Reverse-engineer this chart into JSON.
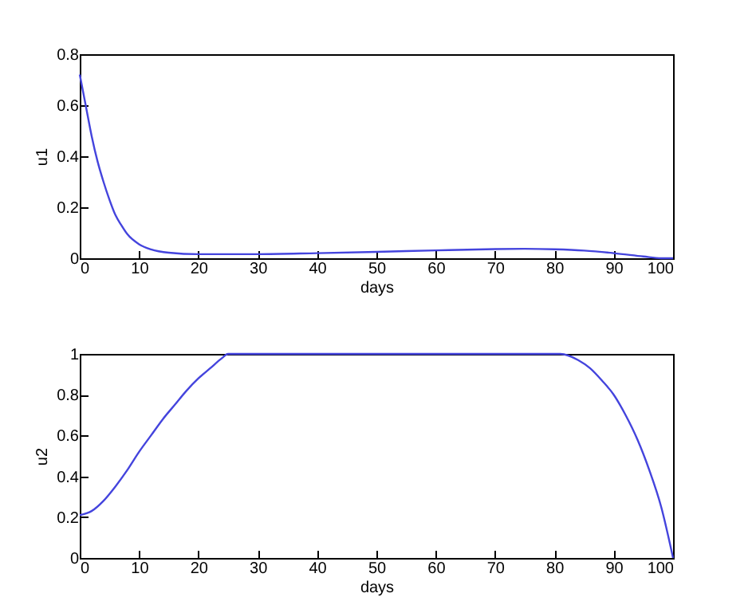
{
  "chart_data": [
    {
      "type": "line",
      "xlabel": "days",
      "ylabel": "u1",
      "xlim": [
        0,
        100
      ],
      "ylim": [
        0,
        0.8
      ],
      "xticks": [
        0,
        10,
        20,
        30,
        40,
        50,
        60,
        70,
        80,
        90,
        100
      ],
      "yticks": [
        0,
        0.2,
        0.4,
        0.6,
        0.8
      ],
      "grid": false,
      "series": [
        {
          "color": "#4444dd",
          "x": [
            0,
            1,
            2,
            3,
            4,
            5,
            6,
            7,
            8,
            10,
            12,
            15,
            20,
            30,
            40,
            50,
            60,
            70,
            75,
            80,
            85,
            90,
            95,
            98,
            100
          ],
          "values": [
            0.72,
            0.6,
            0.48,
            0.38,
            0.3,
            0.23,
            0.17,
            0.13,
            0.095,
            0.055,
            0.035,
            0.022,
            0.016,
            0.016,
            0.02,
            0.025,
            0.031,
            0.036,
            0.037,
            0.035,
            0.03,
            0.02,
            0.007,
            0.0,
            0.0
          ]
        }
      ]
    },
    {
      "type": "line",
      "xlabel": "days",
      "ylabel": "u2",
      "xlim": [
        0,
        100
      ],
      "ylim": [
        0,
        1
      ],
      "xticks": [
        0,
        10,
        20,
        30,
        40,
        50,
        60,
        70,
        80,
        90,
        100
      ],
      "yticks": [
        0,
        0.2,
        0.4,
        0.6,
        0.8,
        1
      ],
      "grid": false,
      "series": [
        {
          "color": "#4444dd",
          "x": [
            0,
            2,
            4,
            6,
            8,
            10,
            12,
            14,
            16,
            18,
            20,
            22,
            24,
            25,
            81,
            84,
            86,
            88,
            90,
            92,
            94,
            96,
            98,
            100
          ],
          "values": [
            0.21,
            0.23,
            0.28,
            0.35,
            0.43,
            0.52,
            0.6,
            0.68,
            0.75,
            0.82,
            0.88,
            0.93,
            0.98,
            1,
            1,
            0.97,
            0.93,
            0.87,
            0.8,
            0.7,
            0.58,
            0.43,
            0.25,
            0.0
          ]
        }
      ]
    }
  ]
}
